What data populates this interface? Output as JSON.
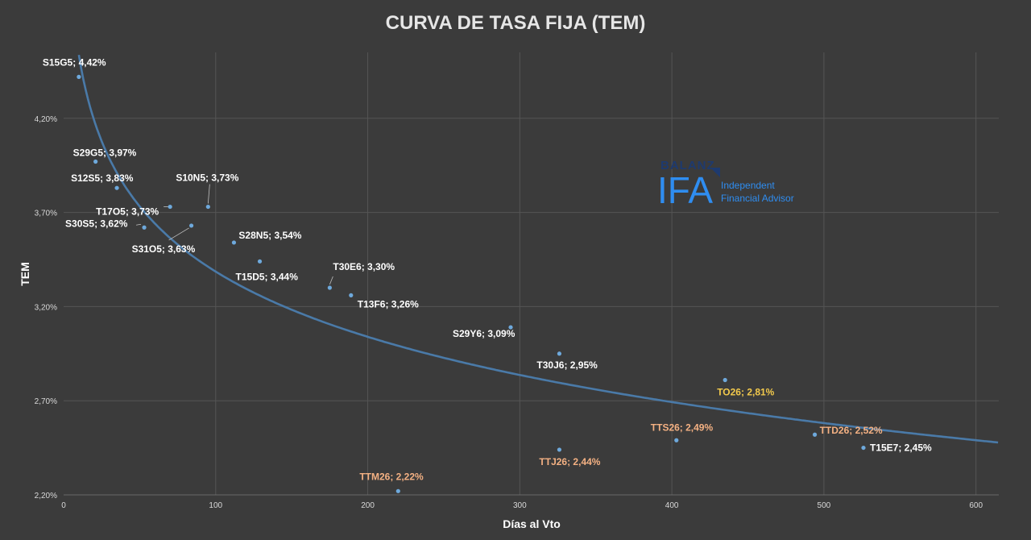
{
  "chart_data": {
    "type": "scatter",
    "title": "CURVA DE TASA FIJA (TEM)",
    "xlabel": "Días al Vto",
    "ylabel": "TEM",
    "xlim": [
      0,
      615
    ],
    "ylim": [
      2.2,
      4.55
    ],
    "x_ticks": [
      "0",
      "100",
      "200",
      "300",
      "400",
      "500",
      "600"
    ],
    "y_ticks": [
      "2,20%",
      "2,70%",
      "3,20%",
      "3,70%",
      "4,20%"
    ],
    "grid": true,
    "trendline": "logarithmic",
    "series": [
      {
        "points": [
          {
            "x": 10,
            "y": 4.42,
            "label": "S15G5; 4,42%",
            "color": "#ffffff"
          },
          {
            "x": 21,
            "y": 3.97,
            "label": "S29G5; 3,97%",
            "color": "#ffffff"
          },
          {
            "x": 35,
            "y": 3.83,
            "label": "S12S5; 3,83%",
            "color": "#ffffff"
          },
          {
            "x": 53,
            "y": 3.62,
            "label": "S30S5; 3,62%",
            "color": "#ffffff"
          },
          {
            "x": 70,
            "y": 3.73,
            "label": "T17O5; 3,73%",
            "color": "#ffffff"
          },
          {
            "x": 84,
            "y": 3.63,
            "label": "S31O5; 3,63%",
            "color": "#ffffff"
          },
          {
            "x": 95,
            "y": 3.73,
            "label": "S10N5; 3,73%",
            "color": "#ffffff"
          },
          {
            "x": 112,
            "y": 3.54,
            "label": "S28N5; 3,54%",
            "color": "#ffffff"
          },
          {
            "x": 129,
            "y": 3.44,
            "label": "T15D5; 3,44%",
            "color": "#ffffff"
          },
          {
            "x": 175,
            "y": 3.3,
            "label": "T30E6; 3,30%",
            "color": "#ffffff"
          },
          {
            "x": 189,
            "y": 3.26,
            "label": "T13F6; 3,26%",
            "color": "#ffffff"
          },
          {
            "x": 294,
            "y": 3.09,
            "label": "S29Y6; 3,09%",
            "color": "#ffffff"
          },
          {
            "x": 326,
            "y": 2.95,
            "label": "T30J6; 2,95%",
            "color": "#ffffff"
          },
          {
            "x": 435,
            "y": 2.81,
            "label": "TO26; 2,81%",
            "color": "#f2c94c"
          },
          {
            "x": 403,
            "y": 2.49,
            "label": "TTS26; 2,49%",
            "color": "#f4b183"
          },
          {
            "x": 494,
            "y": 2.52,
            "label": "TTD26; 2,52%",
            "color": "#f4b183"
          },
          {
            "x": 526,
            "y": 2.45,
            "label": "T15E7; 2,45%",
            "color": "#ffffff"
          },
          {
            "x": 326,
            "y": 2.44,
            "label": "TTJ26; 2,44%",
            "color": "#f4b183"
          },
          {
            "x": 220,
            "y": 2.22,
            "label": "TTM26; 2,22%",
            "color": "#f4b183"
          }
        ]
      }
    ]
  },
  "logo": {
    "brand": "BALANZ",
    "mark": "IFA",
    "line1": "Independent",
    "line2": "Financial Advisor",
    "color": "#2f8df0"
  }
}
